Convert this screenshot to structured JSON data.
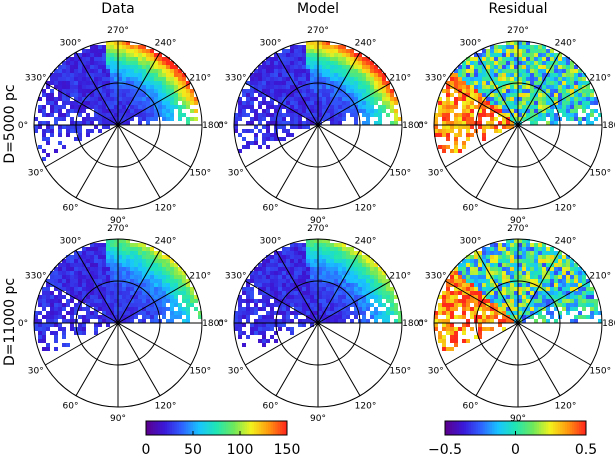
{
  "chart_data": {
    "type": "heatmap",
    "columns": [
      "Data",
      "Model",
      "Residual"
    ],
    "rows": [
      "D=5000  pc",
      "D=11000  pc"
    ],
    "angle_labels": [
      "0°",
      "30°",
      "60°",
      "90°",
      "120°",
      "150°",
      "180°",
      "210°",
      "240°",
      "270°",
      "300°",
      "330°"
    ],
    "colorbars": [
      {
        "name": "data-model",
        "min": 0,
        "max": 150,
        "ticks": [
          "0",
          "50",
          "100",
          "150"
        ]
      },
      {
        "name": "residual",
        "min": -0.5,
        "max": 0.5,
        "ticks": [
          "−0.5",
          "0",
          "0.5"
        ]
      }
    ],
    "colors": {
      "scale": [
        "#5a0090",
        "#3a18d8",
        "#2f62ff",
        "#18c4ff",
        "#20e6b4",
        "#6ee85c",
        "#f2f21c",
        "#ff9a10",
        "#ff2a1a"
      ],
      "grid": "#000000"
    }
  }
}
